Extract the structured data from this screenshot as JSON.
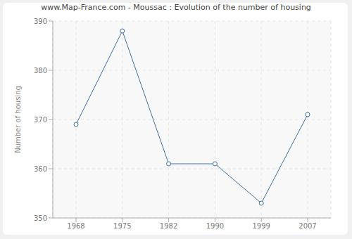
{
  "chart_data": {
    "type": "line",
    "title": "www.Map-France.com - Moussac : Evolution of the number of housing",
    "y_label": "Number of housing",
    "categories": [
      "1968",
      "1975",
      "1982",
      "1990",
      "1999",
      "2007"
    ],
    "values": [
      369,
      388,
      361,
      361,
      353,
      371
    ],
    "color": "#3f6f9f",
    "ylim": [
      350,
      390
    ],
    "yticks": [
      350,
      360,
      370,
      380,
      390
    ],
    "grid": true,
    "marker": "circle",
    "line_style": "solid"
  }
}
